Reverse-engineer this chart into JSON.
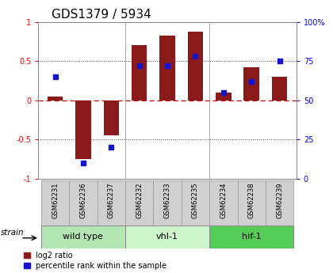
{
  "title": "GDS1379 / 5934",
  "samples": [
    "GSM62231",
    "GSM62236",
    "GSM62237",
    "GSM62232",
    "GSM62233",
    "GSM62235",
    "GSM62234",
    "GSM62238",
    "GSM62239"
  ],
  "log2_ratio": [
    0.05,
    -0.75,
    -0.45,
    0.7,
    0.82,
    0.87,
    0.1,
    0.42,
    0.3
  ],
  "percentile_rank": [
    65,
    10,
    20,
    72,
    72,
    78,
    55,
    62,
    75
  ],
  "groups": [
    {
      "label": "wild type",
      "indices": [
        0,
        1,
        2
      ],
      "color": "#b3e6b3"
    },
    {
      "label": "vhl-1",
      "indices": [
        3,
        4,
        5
      ],
      "color": "#ccf5cc"
    },
    {
      "label": "hif-1",
      "indices": [
        6,
        7,
        8
      ],
      "color": "#55cc55"
    }
  ],
  "ylim_left": [
    -1,
    1
  ],
  "ylim_right": [
    0,
    100
  ],
  "yticks_left": [
    -1,
    -0.5,
    0,
    0.5,
    1
  ],
  "yticks_right": [
    0,
    25,
    50,
    75,
    100
  ],
  "bar_color_red": "#8B1A1A",
  "bar_color_blue": "#1414cc",
  "zero_line_color": "#cc0000",
  "dotted_line_color": "#444444",
  "bg_color": "#ffffff",
  "legend_red_label": "log2 ratio",
  "legend_blue_label": "percentile rank within the sample",
  "strain_label": "strain",
  "title_fontsize": 11,
  "axis_fontsize": 7,
  "group_fontsize": 8,
  "sample_fontsize": 6
}
